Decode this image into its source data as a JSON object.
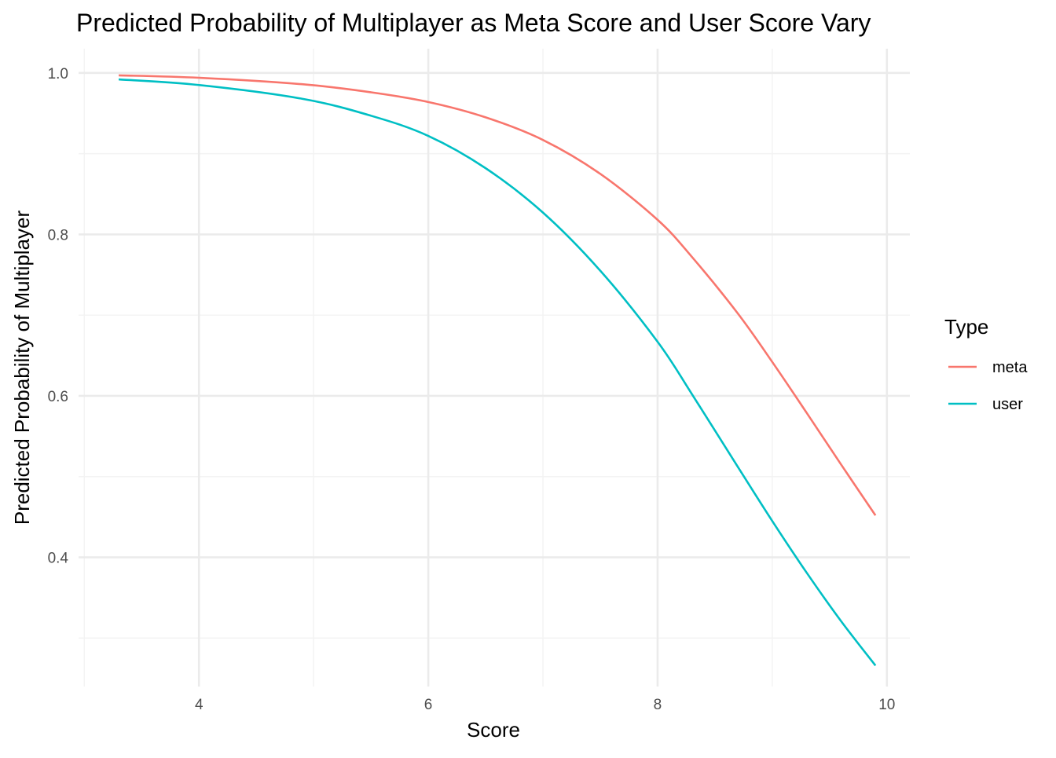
{
  "chart_data": {
    "type": "line",
    "title": "Predicted Probability of Multiplayer as Meta Score and User Score Vary",
    "xlabel": "Score",
    "ylabel": "Predicted Probability of Multiplayer",
    "xlim": [
      2.95,
      10.2
    ],
    "ylim": [
      0.24,
      1.03
    ],
    "x_ticks": [
      4,
      6,
      8,
      10
    ],
    "x_tick_labels": [
      "4",
      "6",
      "8",
      "10"
    ],
    "x_minor": [
      3,
      5,
      7,
      9
    ],
    "y_ticks": [
      0.4,
      0.6,
      0.8,
      1.0
    ],
    "y_tick_labels": [
      "0.4",
      "0.6",
      "0.8",
      "1.0"
    ],
    "y_minor": [
      0.3,
      0.5,
      0.7,
      0.9
    ],
    "grid": true,
    "legend": {
      "title": "Type",
      "position": "right"
    },
    "series": [
      {
        "name": "meta",
        "color": "#F8766D",
        "x": [
          3.3,
          4.0,
          4.9,
          5.5,
          6.0,
          6.5,
          7.0,
          7.5,
          8.0,
          8.3,
          8.7,
          9.0,
          9.3,
          9.6,
          9.9
        ],
        "y": [
          0.997,
          0.994,
          0.986,
          0.976,
          0.964,
          0.945,
          0.917,
          0.875,
          0.818,
          0.772,
          0.702,
          0.642,
          0.579,
          0.515,
          0.452
        ]
      },
      {
        "name": "user",
        "color": "#00BFC4",
        "x": [
          3.3,
          4.0,
          4.9,
          5.5,
          6.0,
          6.5,
          7.0,
          7.5,
          8.0,
          8.3,
          8.7,
          9.0,
          9.3,
          9.6,
          9.9
        ],
        "y": [
          0.992,
          0.985,
          0.968,
          0.947,
          0.922,
          0.882,
          0.827,
          0.755,
          0.667,
          0.602,
          0.512,
          0.445,
          0.381,
          0.321,
          0.266
        ]
      }
    ]
  }
}
